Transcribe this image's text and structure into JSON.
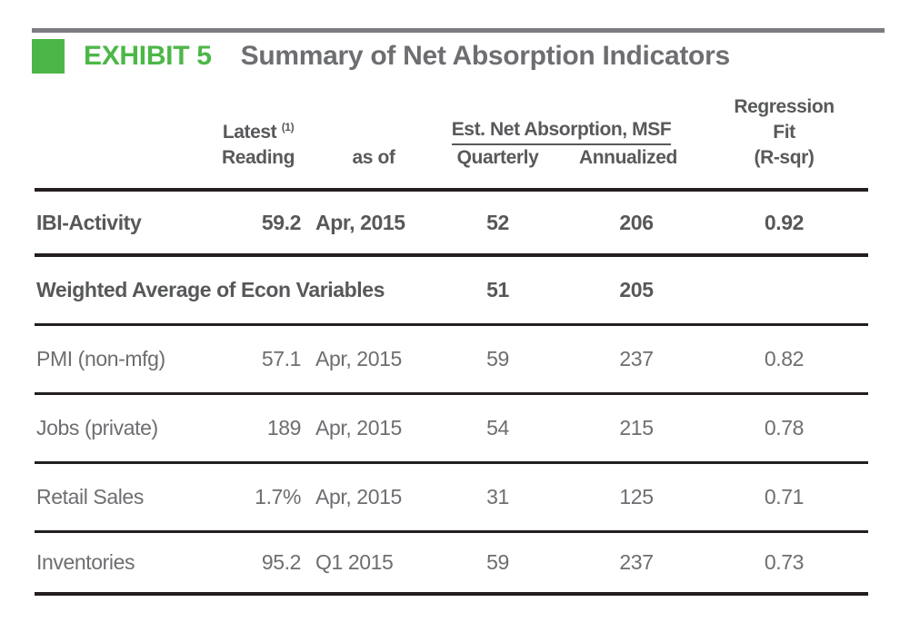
{
  "header": {
    "exhibit_label": "EXHIBIT 5",
    "title": "Summary of Net Absorption Indicators"
  },
  "colors": {
    "accent_green": "#4cb748",
    "title_gray": "#6d6e71",
    "bold_text_gray": "#58595b",
    "rule_dark": "#231f20",
    "top_bar_gray": "#7b7d80"
  },
  "table": {
    "col_headers": {
      "latest": "Latest",
      "latest_sup": "(1)",
      "reading": "Reading",
      "as_of": "as of",
      "est_group": "Est. Net Absorption, MSF",
      "quarterly": "Quarterly",
      "annualized": "Annualized",
      "regression_line1": "Regression",
      "regression_line2": "Fit",
      "regression_line3": "(R-sqr)"
    },
    "rows": [
      {
        "label": "IBI-Activity",
        "reading": "59.2",
        "as_of": "Apr, 2015",
        "quarterly": "52",
        "annualized": "206",
        "r_sqr": "0.92"
      },
      {
        "label": "Weighted Average of Econ Variables",
        "reading": "",
        "as_of": "",
        "quarterly": "51",
        "annualized": "205",
        "r_sqr": ""
      },
      {
        "label": "PMI (non-mfg)",
        "reading": "57.1",
        "as_of": "Apr, 2015",
        "quarterly": "59",
        "annualized": "237",
        "r_sqr": "0.82"
      },
      {
        "label": "Jobs (private)",
        "reading": "189",
        "as_of": "Apr, 2015",
        "quarterly": "54",
        "annualized": "215",
        "r_sqr": "0.78"
      },
      {
        "label": "Retail Sales",
        "reading": "1.7%",
        "as_of": "Apr, 2015",
        "quarterly": "31",
        "annualized": "125",
        "r_sqr": "0.71"
      },
      {
        "label": "Inventories",
        "reading": "95.2",
        "as_of": "Q1 2015",
        "quarterly": "59",
        "annualized": "237",
        "r_sqr": "0.73"
      }
    ]
  }
}
